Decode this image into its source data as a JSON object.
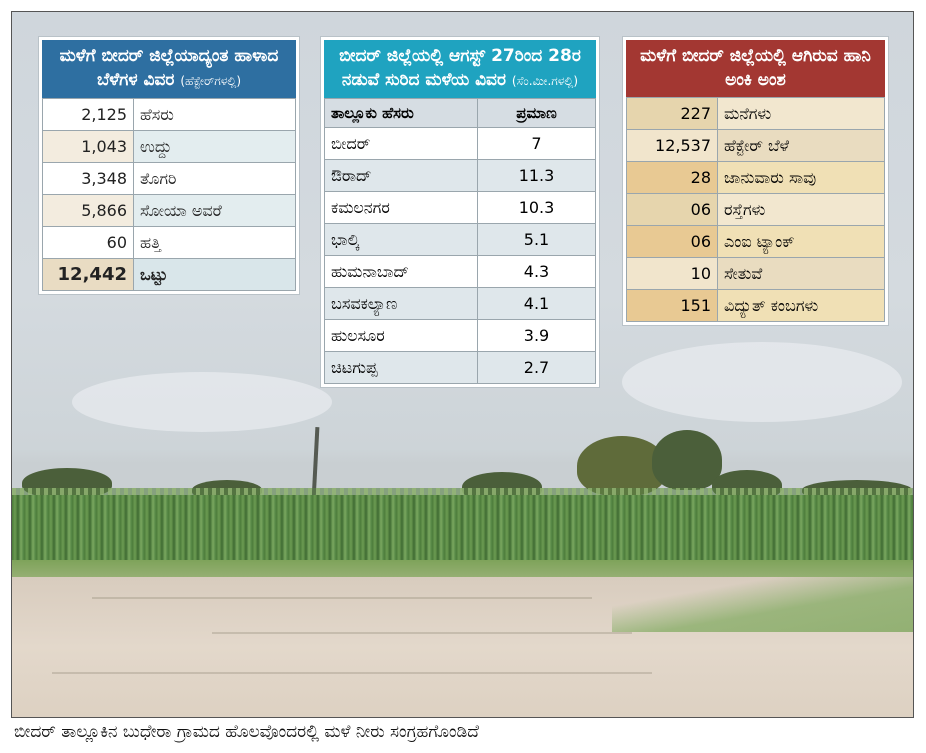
{
  "table1": {
    "title": "ಮಳೆಗೆ ಬೀದರ್ ಜಿಲ್ಲೆಯಾದ್ಯಂತ ಹಾಳಾದ ಬೆಳೆಗಳ ವಿವರ",
    "unit": "(ಹೆಕ್ಟೇರ್‌ಗಳಲ್ಲಿ)",
    "rows": [
      {
        "value": "2,125",
        "label": "ಹೆಸರು"
      },
      {
        "value": "1,043",
        "label": "ಉದ್ದು"
      },
      {
        "value": "3,348",
        "label": "ತೊಗರಿ"
      },
      {
        "value": "5,866",
        "label": "ಸೋಯಾ ಅವರೆ"
      },
      {
        "value": "60",
        "label": "ಹತ್ತಿ"
      }
    ],
    "total": {
      "value": "12,442",
      "label": "ಒಟ್ಟು"
    }
  },
  "table2": {
    "title": "ಬೀದರ್ ಜಿಲ್ಲೆಯಲ್ಲಿ ಆಗಸ್ಟ್ 27ರಿಂದ 28ರ ನಡುವೆ ಸುರಿದ ಮಳೆಯ ವಿವರ",
    "unit": "(ಸೆಂ.ಮೀ.ಗಳಲ್ಲಿ)",
    "col1": "ತಾಲ್ಲೂಕು ಹೆಸರು",
    "col2": "ಪ್ರಮಾಣ",
    "rows": [
      {
        "label": "ಬೀದರ್",
        "value": "7"
      },
      {
        "label": "ಔರಾದ್",
        "value": "11.3"
      },
      {
        "label": "ಕಮಲನಗರ",
        "value": "10.3"
      },
      {
        "label": "ಭಾಲ್ಕಿ",
        "value": "5.1"
      },
      {
        "label": "ಹುಮನಾಬಾದ್",
        "value": "4.3"
      },
      {
        "label": "ಬಸವಕಲ್ಯಾಣ",
        "value": "4.1"
      },
      {
        "label": "ಹುಲಸೂರ",
        "value": "3.9"
      },
      {
        "label": "ಚಿಟಗುಪ್ಪ",
        "value": "2.7"
      }
    ]
  },
  "table3": {
    "title": "ಮಳೆಗೆ ಬೀದರ್ ಜಿಲ್ಲೆಯಲ್ಲಿ ಆಗಿರುವ ಹಾನಿ ಅಂಕಿ ಅಂಶ",
    "rows": [
      {
        "value": "227",
        "label": "ಮನೆಗಳು"
      },
      {
        "value": "12,537",
        "label": "ಹೆಕ್ಟೇರ್ ಬೆಳೆ"
      },
      {
        "value": "28",
        "label": "ಜಾನುವಾರು ಸಾವು"
      },
      {
        "value": "06",
        "label": "ರಸ್ತೆಗಳು"
      },
      {
        "value": "06",
        "label": "ಎಂಐ ಟ್ಯಾಂಕ್"
      },
      {
        "value": "10",
        "label": "ಸೇತುವೆ"
      },
      {
        "value": "151",
        "label": "ವಿದ್ಯುತ್ ಕಂಬಗಳು"
      }
    ]
  },
  "caption": "ಬೀದರ್ ತಾಲ್ಲೂಕಿನ ಬುಧೇರಾ ಗ್ರಾಮದ ಹೊಲವೊಂದರಲ್ಲಿ ಮಳೆ ನೀರು ಸಂಗ್ರಹಗೊಂಡಿದೆ"
}
